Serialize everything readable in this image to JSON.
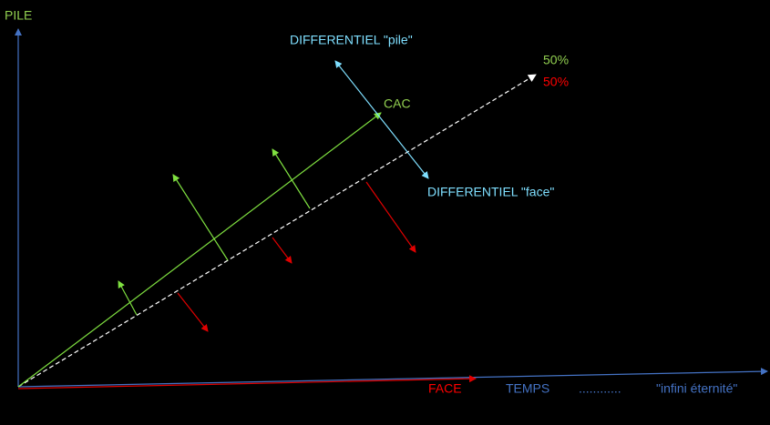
{
  "axes": {
    "y_label": "PILE",
    "x_labels": [
      "FACE",
      "TEMPS",
      "............",
      "\"infini éternité\""
    ]
  },
  "labels": {
    "trend_top": "50%",
    "trend_bottom": "50%",
    "cac": "CAC",
    "diff_pile": "DIFFERENTIEL \"pile\"",
    "diff_face": "DIFFERENTIEL \"face\""
  }
}
